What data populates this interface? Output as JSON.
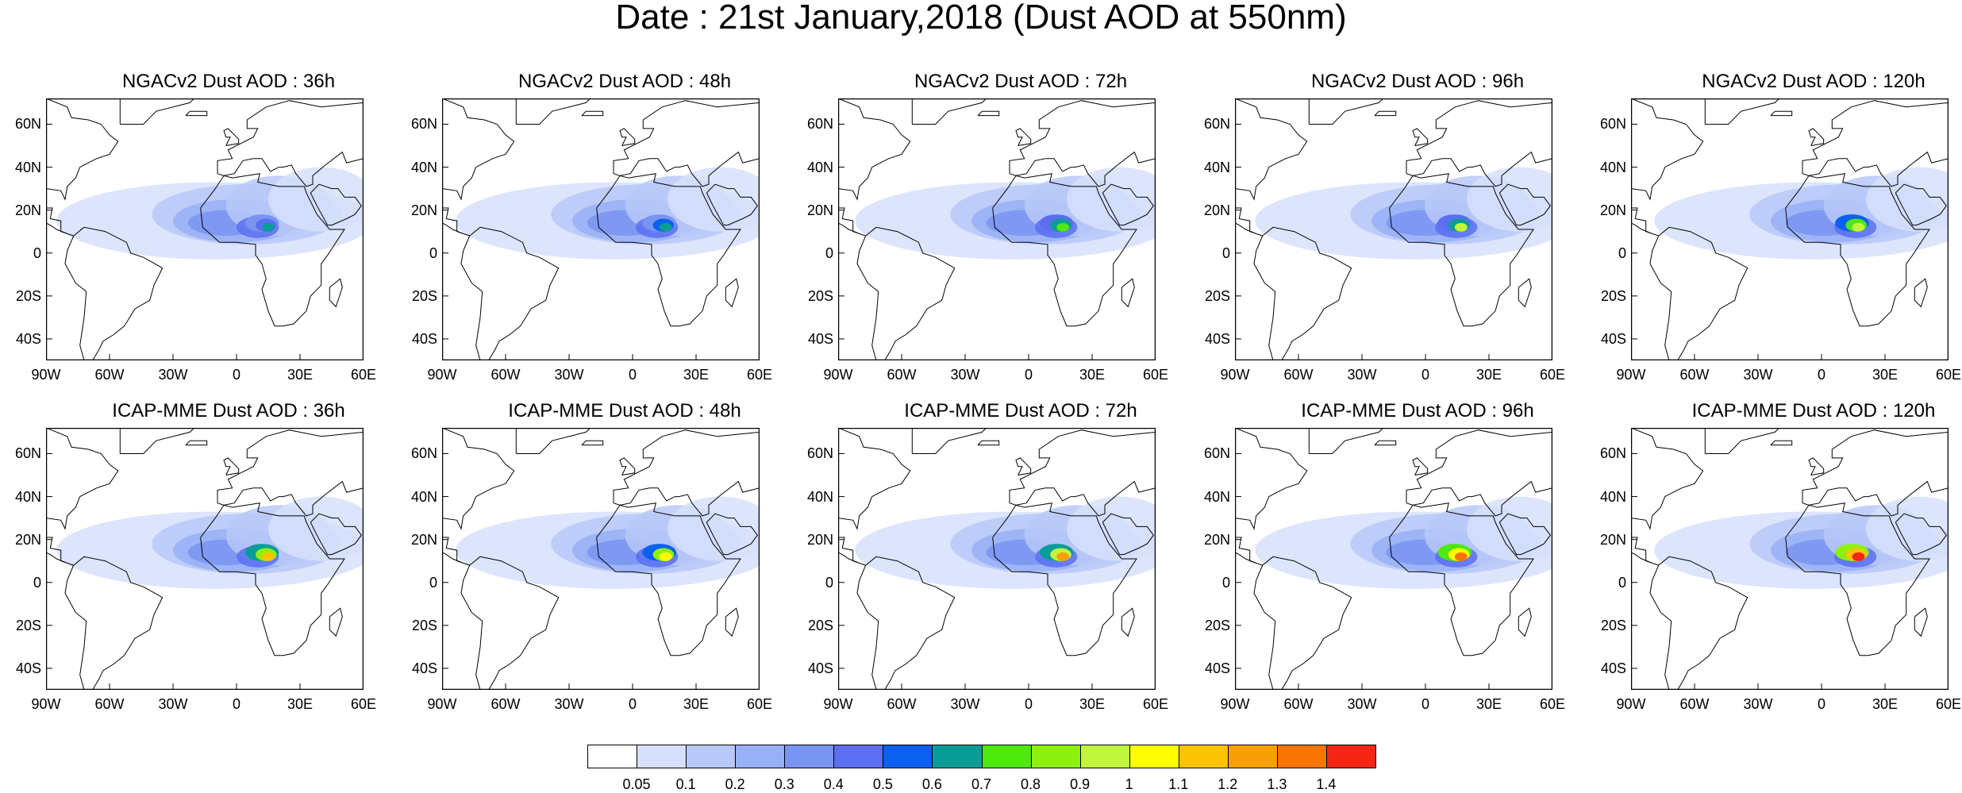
{
  "title": "Date : 21st January,2018 (Dust AOD at 550nm)",
  "panels": [
    {
      "title": "NGACv2 Dust AOD : 36h",
      "intensity": 0.55
    },
    {
      "title": "NGACv2 Dust AOD : 48h",
      "intensity": 0.6
    },
    {
      "title": "NGACv2 Dust AOD : 72h",
      "intensity": 0.7
    },
    {
      "title": "NGACv2 Dust AOD : 96h",
      "intensity": 0.8
    },
    {
      "title": "NGACv2 Dust AOD : 120h",
      "intensity": 0.85
    },
    {
      "title": "ICAP-MME Dust AOD : 36h",
      "intensity": 1.0
    },
    {
      "title": "ICAP-MME Dust AOD : 48h",
      "intensity": 0.95
    },
    {
      "title": "ICAP-MME Dust AOD : 72h",
      "intensity": 1.1
    },
    {
      "title": "ICAP-MME Dust AOD : 96h",
      "intensity": 1.2
    },
    {
      "title": "ICAP-MME Dust AOD : 120h",
      "intensity": 1.3
    }
  ],
  "lat_labels": [
    "60N",
    "40N",
    "20N",
    "0",
    "20S",
    "40S"
  ],
  "lon_labels": [
    "90W",
    "60W",
    "30W",
    "0",
    "30E",
    "60E"
  ],
  "colorbar": {
    "labels": [
      "0.05",
      "0.1",
      "0.2",
      "0.3",
      "0.4",
      "0.5",
      "0.6",
      "0.7",
      "0.8",
      "0.9",
      "1",
      "1.1",
      "1.2",
      "1.3",
      "1.4"
    ],
    "colors": [
      "#ffffff",
      "#d6e0fb",
      "#b8c8f8",
      "#98b0f6",
      "#7a94f2",
      "#5b6ff0",
      "#0b60ee",
      "#0a9c96",
      "#4ee80c",
      "#8ef00e",
      "#c2f53e",
      "#ffff00",
      "#fcc400",
      "#f9a000",
      "#f77500",
      "#f52515"
    ]
  }
}
